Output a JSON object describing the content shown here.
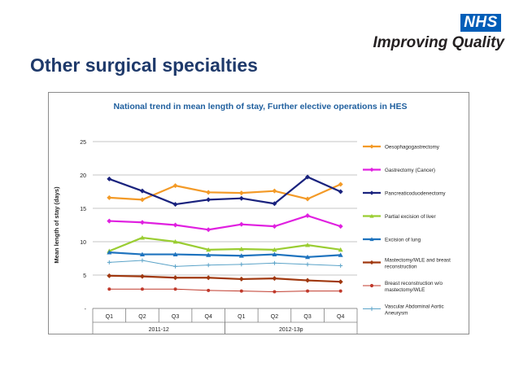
{
  "header": {
    "logo_text": "NHS",
    "tagline": "Improving Quality",
    "slide_title": "Other surgical specialties"
  },
  "chart_data": {
    "type": "line",
    "title": "National trend in mean length of stay, Further elective operations in HES",
    "ylabel": "Mean length of stay (days)",
    "xlabel": "",
    "ylim": [
      0,
      25
    ],
    "yticks": [
      0,
      5,
      10,
      15,
      20,
      25
    ],
    "ytick_labels": [
      "-",
      "5",
      "10",
      "15",
      "20",
      "25"
    ],
    "categories": [
      "Q1",
      "Q2",
      "Q3",
      "Q4",
      "Q1",
      "Q2",
      "Q3",
      "Q4"
    ],
    "year_groups": [
      {
        "label": "2011-12",
        "start": 0,
        "end": 3
      },
      {
        "label": "2012-13p",
        "start": 4,
        "end": 7
      }
    ],
    "grid": true,
    "legend_position": "right",
    "series": [
      {
        "name": "Oesophagogastrectomy",
        "color": "#F39A27",
        "marker": "diamond",
        "values": [
          16.6,
          16.3,
          18.4,
          17.4,
          17.3,
          17.6,
          16.4,
          18.6
        ]
      },
      {
        "name": "Gastrectomy (Cancer)",
        "color": "#E020E0",
        "marker": "diamond",
        "values": [
          13.1,
          12.9,
          12.5,
          11.8,
          12.6,
          12.3,
          13.9,
          12.3
        ]
      },
      {
        "name": "Pancreaticoduodenectomy",
        "color": "#1A237E",
        "marker": "diamond",
        "values": [
          19.4,
          17.6,
          15.6,
          16.3,
          16.5,
          15.7,
          19.7,
          17.5
        ]
      },
      {
        "name": "Partial excision of liver",
        "color": "#9ACD32",
        "marker": "triangle",
        "values": [
          8.6,
          10.6,
          10.0,
          8.8,
          8.9,
          8.8,
          9.5,
          8.8
        ]
      },
      {
        "name": "Excision of lung",
        "color": "#1E73BE",
        "marker": "triangle",
        "values": [
          8.4,
          8.1,
          8.1,
          8.0,
          7.9,
          8.1,
          7.7,
          8.0
        ]
      },
      {
        "name": "Mastectomy/WLE and breast reconstruction",
        "color": "#A0380F",
        "marker": "diamond",
        "values": [
          4.9,
          4.8,
          4.6,
          4.6,
          4.4,
          4.5,
          4.2,
          4.0
        ]
      },
      {
        "name": "Breast reconstruction w/o mastectomy/WLE",
        "color": "#C0392B",
        "marker": "circle",
        "values": [
          2.9,
          2.9,
          2.9,
          2.7,
          2.6,
          2.5,
          2.6,
          2.6
        ]
      },
      {
        "name": "Vascular Abdominal Aortic Aneurysm",
        "color": "#5BA3C8",
        "marker": "plus",
        "values": [
          6.9,
          7.2,
          6.3,
          6.5,
          6.6,
          6.8,
          6.6,
          6.4
        ]
      }
    ]
  }
}
